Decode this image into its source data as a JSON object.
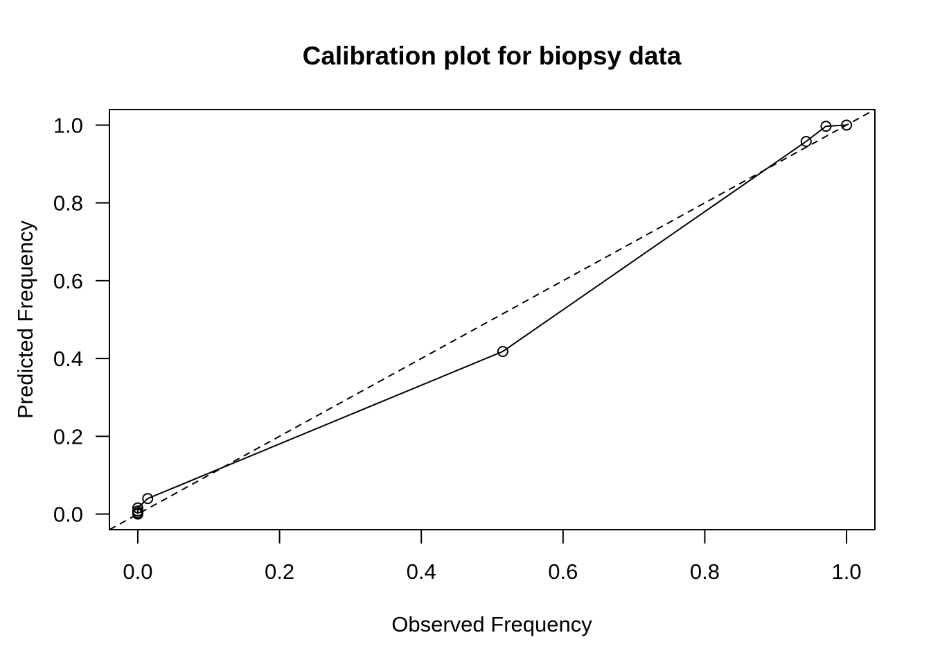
{
  "chart_data": {
    "type": "line",
    "title": "Calibration plot for biopsy data",
    "xlabel": "Observed Frequency",
    "ylabel": "Predicted Frequency",
    "xlim": [
      -0.04,
      1.04
    ],
    "ylim": [
      -0.04,
      1.04
    ],
    "xticks": [
      0.0,
      0.2,
      0.4,
      0.6,
      0.8,
      1.0
    ],
    "xtick_labels": [
      "0.0",
      "0.2",
      "0.4",
      "0.6",
      "0.8",
      "1.0"
    ],
    "yticks": [
      0.0,
      0.2,
      0.4,
      0.6,
      0.8,
      1.0
    ],
    "ytick_labels": [
      "0.0",
      "0.2",
      "0.4",
      "0.6",
      "0.8",
      "1.0"
    ],
    "grid": false,
    "series": [
      {
        "style": "solid line with open circle markers",
        "x": [
          0.0,
          0.0,
          0.0,
          0.0,
          0.014,
          0.515,
          0.943,
          0.971,
          1.0
        ],
        "y": [
          0.0,
          0.003,
          0.008,
          0.016,
          0.04,
          0.418,
          0.958,
          0.997,
          1.0
        ]
      }
    ],
    "reference_line": {
      "style": "dashed",
      "description": "diagonal y = x",
      "from": [
        -0.04,
        -0.04
      ],
      "to": [
        1.04,
        1.04
      ]
    },
    "colors": {
      "line": "#000000",
      "marker": "#000000",
      "background": "#ffffff"
    }
  }
}
